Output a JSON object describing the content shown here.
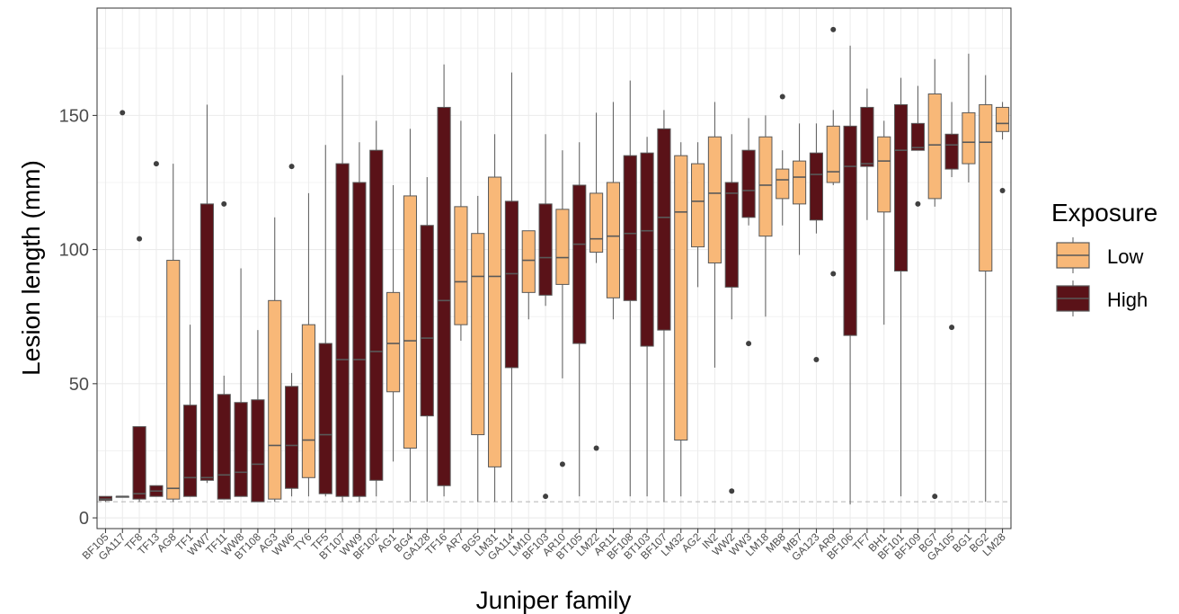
{
  "chart_data": {
    "type": "box",
    "xlabel": "Juniper family",
    "ylabel": "Lesion length (mm)",
    "ylim": [
      -4,
      190
    ],
    "yticks": [
      0,
      50,
      100,
      150
    ],
    "reference_line": 6,
    "legend": {
      "title": "Exposure",
      "placement": "right",
      "entries": [
        {
          "key": "Low",
          "label": "Low"
        },
        {
          "key": "High",
          "label": "High"
        }
      ]
    },
    "colors": {
      "Low": "#f8b878",
      "High": "#5a1218",
      "box_stroke": "#595959",
      "whisker": "#595959",
      "grid": "#ebebeb",
      "ref_line": "#b3b3b3"
    },
    "boxes": [
      {
        "family": "BF105",
        "exposure": "High",
        "min": 6,
        "q1": 6.5,
        "median": 7,
        "q3": 8,
        "max": 8,
        "outliers": []
      },
      {
        "family": "GA117",
        "exposure": "High",
        "min": 8,
        "q1": 8,
        "median": 8,
        "q3": 8,
        "max": 8,
        "outliers": [
          151
        ]
      },
      {
        "family": "TF8",
        "exposure": "High",
        "min": 6,
        "q1": 7,
        "median": 9,
        "q3": 34,
        "max": 34,
        "outliers": [
          104
        ]
      },
      {
        "family": "TF13",
        "exposure": "High",
        "min": 8,
        "q1": 8,
        "median": 10,
        "q3": 12,
        "max": 12,
        "outliers": [
          132
        ]
      },
      {
        "family": "AG8",
        "exposure": "Low",
        "min": 6,
        "q1": 7,
        "median": 11,
        "q3": 96,
        "max": 132,
        "outliers": []
      },
      {
        "family": "TF1",
        "exposure": "High",
        "min": 8,
        "q1": 8,
        "median": 15,
        "q3": 42,
        "max": 72,
        "outliers": []
      },
      {
        "family": "WW7",
        "exposure": "High",
        "min": 13,
        "q1": 14,
        "median": 15,
        "q3": 117,
        "max": 154,
        "outliers": []
      },
      {
        "family": "TF11",
        "exposure": "High",
        "min": 7,
        "q1": 7,
        "median": 16,
        "q3": 46,
        "max": 53,
        "outliers": [
          117
        ]
      },
      {
        "family": "WW8",
        "exposure": "High",
        "min": 8,
        "q1": 8,
        "median": 17,
        "q3": 43,
        "max": 93,
        "outliers": []
      },
      {
        "family": "BT108",
        "exposure": "High",
        "min": 6,
        "q1": 6,
        "median": 20,
        "q3": 44,
        "max": 70,
        "outliers": []
      },
      {
        "family": "AG3",
        "exposure": "Low",
        "min": 6,
        "q1": 7,
        "median": 27,
        "q3": 81,
        "max": 112,
        "outliers": []
      },
      {
        "family": "WW6",
        "exposure": "High",
        "min": 8,
        "q1": 11,
        "median": 27,
        "q3": 49,
        "max": 54,
        "outliers": [
          131
        ]
      },
      {
        "family": "TY6",
        "exposure": "Low",
        "min": 8,
        "q1": 15,
        "median": 29,
        "q3": 72,
        "max": 121,
        "outliers": []
      },
      {
        "family": "TF5",
        "exposure": "High",
        "min": 8,
        "q1": 9,
        "median": 31,
        "q3": 65,
        "max": 139,
        "outliers": []
      },
      {
        "family": "BT107",
        "exposure": "High",
        "min": 6,
        "q1": 8,
        "median": 59,
        "q3": 132,
        "max": 165,
        "outliers": []
      },
      {
        "family": "WW9",
        "exposure": "High",
        "min": 6,
        "q1": 8,
        "median": 59,
        "q3": 125,
        "max": 140,
        "outliers": []
      },
      {
        "family": "BF102",
        "exposure": "High",
        "min": 8,
        "q1": 14,
        "median": 62,
        "q3": 137,
        "max": 148,
        "outliers": []
      },
      {
        "family": "AG1",
        "exposure": "Low",
        "min": 21,
        "q1": 47,
        "median": 65,
        "q3": 84,
        "max": 124,
        "outliers": []
      },
      {
        "family": "BG4",
        "exposure": "Low",
        "min": 6,
        "q1": 26,
        "median": 66,
        "q3": 120,
        "max": 145,
        "outliers": []
      },
      {
        "family": "GA128",
        "exposure": "High",
        "min": 6,
        "q1": 38,
        "median": 67,
        "q3": 109,
        "max": 127,
        "outliers": []
      },
      {
        "family": "TF16",
        "exposure": "High",
        "min": 8,
        "q1": 12,
        "median": 81,
        "q3": 153,
        "max": 169,
        "outliers": []
      },
      {
        "family": "AR7",
        "exposure": "Low",
        "min": 66,
        "q1": 72,
        "median": 88,
        "q3": 116,
        "max": 148,
        "outliers": []
      },
      {
        "family": "BG5",
        "exposure": "Low",
        "min": 6,
        "q1": 31,
        "median": 90,
        "q3": 106,
        "max": 120,
        "outliers": []
      },
      {
        "family": "LM31",
        "exposure": "Low",
        "min": 6,
        "q1": 19,
        "median": 90,
        "q3": 127,
        "max": 143,
        "outliers": []
      },
      {
        "family": "GA114",
        "exposure": "High",
        "min": 6,
        "q1": 56,
        "median": 91,
        "q3": 118,
        "max": 166,
        "outliers": []
      },
      {
        "family": "LM10",
        "exposure": "Low",
        "min": 74,
        "q1": 84,
        "median": 96,
        "q3": 107,
        "max": 107,
        "outliers": []
      },
      {
        "family": "BF103",
        "exposure": "High",
        "min": 79,
        "q1": 83,
        "median": 97,
        "q3": 117,
        "max": 143,
        "outliers": [
          8
        ]
      },
      {
        "family": "AR10",
        "exposure": "Low",
        "min": 52,
        "q1": 87,
        "median": 97,
        "q3": 115,
        "max": 137,
        "outliers": [
          20
        ]
      },
      {
        "family": "BT105",
        "exposure": "High",
        "min": 8,
        "q1": 65,
        "median": 102,
        "q3": 124,
        "max": 140,
        "outliers": []
      },
      {
        "family": "LM22",
        "exposure": "Low",
        "min": 95,
        "q1": 99,
        "median": 104,
        "q3": 121,
        "max": 151,
        "outliers": [
          26
        ]
      },
      {
        "family": "AR11",
        "exposure": "Low",
        "min": 74,
        "q1": 82,
        "median": 105,
        "q3": 125,
        "max": 155,
        "outliers": []
      },
      {
        "family": "BF108",
        "exposure": "High",
        "min": 8,
        "q1": 81,
        "median": 106,
        "q3": 135,
        "max": 163,
        "outliers": []
      },
      {
        "family": "BT103",
        "exposure": "High",
        "min": 8,
        "q1": 64,
        "median": 107,
        "q3": 136,
        "max": 142,
        "outliers": []
      },
      {
        "family": "BF107",
        "exposure": "High",
        "min": 6,
        "q1": 70,
        "median": 112,
        "q3": 145,
        "max": 152,
        "outliers": []
      },
      {
        "family": "LM32",
        "exposure": "Low",
        "min": 8,
        "q1": 29,
        "median": 114,
        "q3": 135,
        "max": 140,
        "outliers": []
      },
      {
        "family": "AG2",
        "exposure": "Low",
        "min": 86,
        "q1": 101,
        "median": 118,
        "q3": 132,
        "max": 140,
        "outliers": []
      },
      {
        "family": "IN2",
        "exposure": "Low",
        "min": 56,
        "q1": 95,
        "median": 121,
        "q3": 142,
        "max": 155,
        "outliers": []
      },
      {
        "family": "WW2",
        "exposure": "High",
        "min": 74,
        "q1": 86,
        "median": 121,
        "q3": 125,
        "max": 143,
        "outliers": [
          10
        ]
      },
      {
        "family": "WW3",
        "exposure": "High",
        "min": 109,
        "q1": 112,
        "median": 122,
        "q3": 137,
        "max": 149,
        "outliers": [
          65
        ]
      },
      {
        "family": "LM18",
        "exposure": "Low",
        "min": 75,
        "q1": 105,
        "median": 124,
        "q3": 142,
        "max": 150,
        "outliers": []
      },
      {
        "family": "MB8",
        "exposure": "Low",
        "min": 109,
        "q1": 119,
        "median": 126,
        "q3": 130,
        "max": 137,
        "outliers": [
          157
        ]
      },
      {
        "family": "MB7",
        "exposure": "Low",
        "min": 98,
        "q1": 117,
        "median": 127,
        "q3": 133,
        "max": 147,
        "outliers": []
      },
      {
        "family": "GA123",
        "exposure": "High",
        "min": 106,
        "q1": 111,
        "median": 128,
        "q3": 136,
        "max": 147,
        "outliers": [
          59
        ]
      },
      {
        "family": "AR9",
        "exposure": "Low",
        "min": 124,
        "q1": 125,
        "median": 129,
        "q3": 146,
        "max": 152,
        "outliers": [
          182,
          91
        ]
      },
      {
        "family": "BF106",
        "exposure": "High",
        "min": 5,
        "q1": 68,
        "median": 131,
        "q3": 146,
        "max": 176,
        "outliers": []
      },
      {
        "family": "TF7",
        "exposure": "High",
        "min": 111,
        "q1": 131,
        "median": 132,
        "q3": 153,
        "max": 160,
        "outliers": []
      },
      {
        "family": "BH1",
        "exposure": "Low",
        "min": 72,
        "q1": 114,
        "median": 133,
        "q3": 142,
        "max": 148,
        "outliers": []
      },
      {
        "family": "BF101",
        "exposure": "High",
        "min": 8,
        "q1": 92,
        "median": 137,
        "q3": 154,
        "max": 164,
        "outliers": []
      },
      {
        "family": "BF109",
        "exposure": "High",
        "min": 137,
        "q1": 137,
        "median": 138,
        "q3": 147,
        "max": 161,
        "outliers": [
          117
        ]
      },
      {
        "family": "BG7",
        "exposure": "Low",
        "min": 116,
        "q1": 119,
        "median": 139,
        "q3": 158,
        "max": 171,
        "outliers": [
          8
        ]
      },
      {
        "family": "GA105",
        "exposure": "High",
        "min": 127,
        "q1": 130,
        "median": 139,
        "q3": 143,
        "max": 155,
        "outliers": [
          71
        ]
      },
      {
        "family": "BG1",
        "exposure": "Low",
        "min": 125,
        "q1": 132,
        "median": 140,
        "q3": 151,
        "max": 173,
        "outliers": []
      },
      {
        "family": "BG2",
        "exposure": "Low",
        "min": 6,
        "q1": 92,
        "median": 140,
        "q3": 154,
        "max": 165,
        "outliers": []
      },
      {
        "family": "LM28",
        "exposure": "Low",
        "min": 141,
        "q1": 144,
        "median": 147,
        "q3": 153,
        "max": 155,
        "outliers": [
          122
        ]
      }
    ]
  }
}
